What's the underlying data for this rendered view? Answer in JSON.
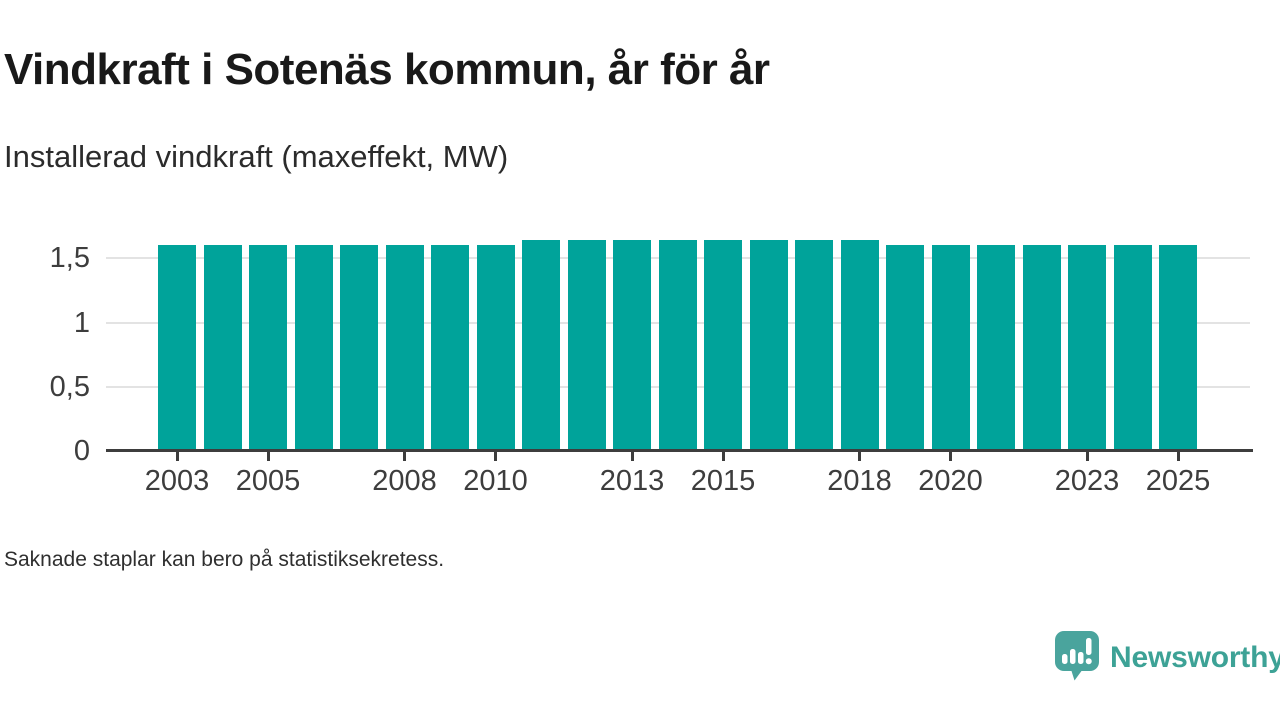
{
  "header": {
    "title": "Vindkraft i Sotenäs kommun, år för år",
    "subtitle": "Installerad vindkraft (maxeffekt, MW)"
  },
  "footer": {
    "note": "Saknade staplar kan bero på statistiksekretess."
  },
  "branding": {
    "logo_text": "Newsworthy",
    "logo_icon": "bar-chart-speech-bubble-icon"
  },
  "colors": {
    "bar": "#00a39a",
    "grid": "#e3e3e3",
    "axis": "#3d3d3d",
    "logo": "#3da296",
    "title_text": "#191919",
    "body_text": "#2f2f2f"
  },
  "chart_data": {
    "type": "bar",
    "title": "Vindkraft i Sotenäs kommun, år för år",
    "subtitle": "Installerad vindkraft (maxeffekt, MW)",
    "unit": "MW",
    "x": [
      2003,
      2004,
      2005,
      2006,
      2007,
      2008,
      2009,
      2010,
      2011,
      2012,
      2013,
      2014,
      2015,
      2016,
      2017,
      2018,
      2019,
      2020,
      2021,
      2022,
      2023,
      2024,
      2025
    ],
    "values": [
      1.6,
      1.6,
      1.6,
      1.6,
      1.6,
      1.6,
      1.6,
      1.6,
      1.64,
      1.64,
      1.64,
      1.64,
      1.64,
      1.64,
      1.64,
      1.64,
      1.6,
      1.6,
      1.6,
      1.6,
      1.6,
      1.6,
      1.6
    ],
    "xlabel": "",
    "ylabel": "",
    "ylim": [
      0,
      1.72
    ],
    "yticks": [
      0,
      0.5,
      1,
      1.5
    ],
    "ytick_labels": [
      "0",
      "0,5",
      "1",
      "1,5"
    ],
    "xtick_years": [
      2003,
      2005,
      2008,
      2010,
      2013,
      2015,
      2018,
      2020,
      2023,
      2025
    ],
    "xtick_labels": [
      "2003",
      "2005",
      "2008",
      "2010",
      "2013",
      "2015",
      "2018",
      "2020",
      "2023",
      "2025"
    ],
    "grid": "horizontal-only",
    "legend": "none",
    "decimal_separator": ","
  }
}
